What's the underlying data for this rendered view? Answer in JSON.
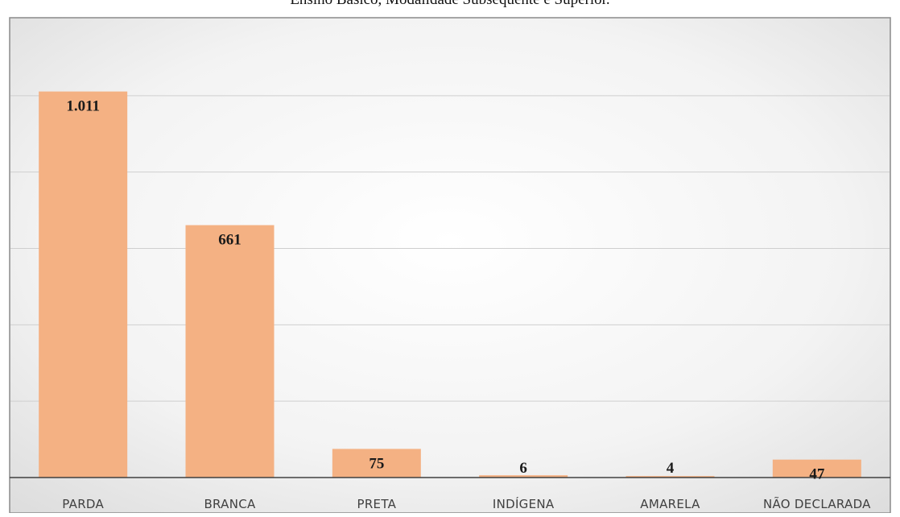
{
  "caption": "Ensino Básico, Modalidade Subsequente e Superior.",
  "chart_data": {
    "type": "bar",
    "title": "",
    "xlabel": "",
    "ylabel": "",
    "categories": [
      "PARDA",
      "BRANCA",
      "PRETA",
      "INDÍGENA",
      "AMARELA",
      "NÃO DECLARADA"
    ],
    "values": [
      1011,
      661,
      75,
      6,
      4,
      47
    ],
    "value_labels": [
      "1.011",
      "661",
      "75",
      "6",
      "4",
      "47"
    ],
    "ylim": [
      0,
      1200
    ],
    "grid": true,
    "legend": "none",
    "bar_color": "#F4B183",
    "gridline_color": "#cfcfcf",
    "axis_color": "#404040"
  }
}
